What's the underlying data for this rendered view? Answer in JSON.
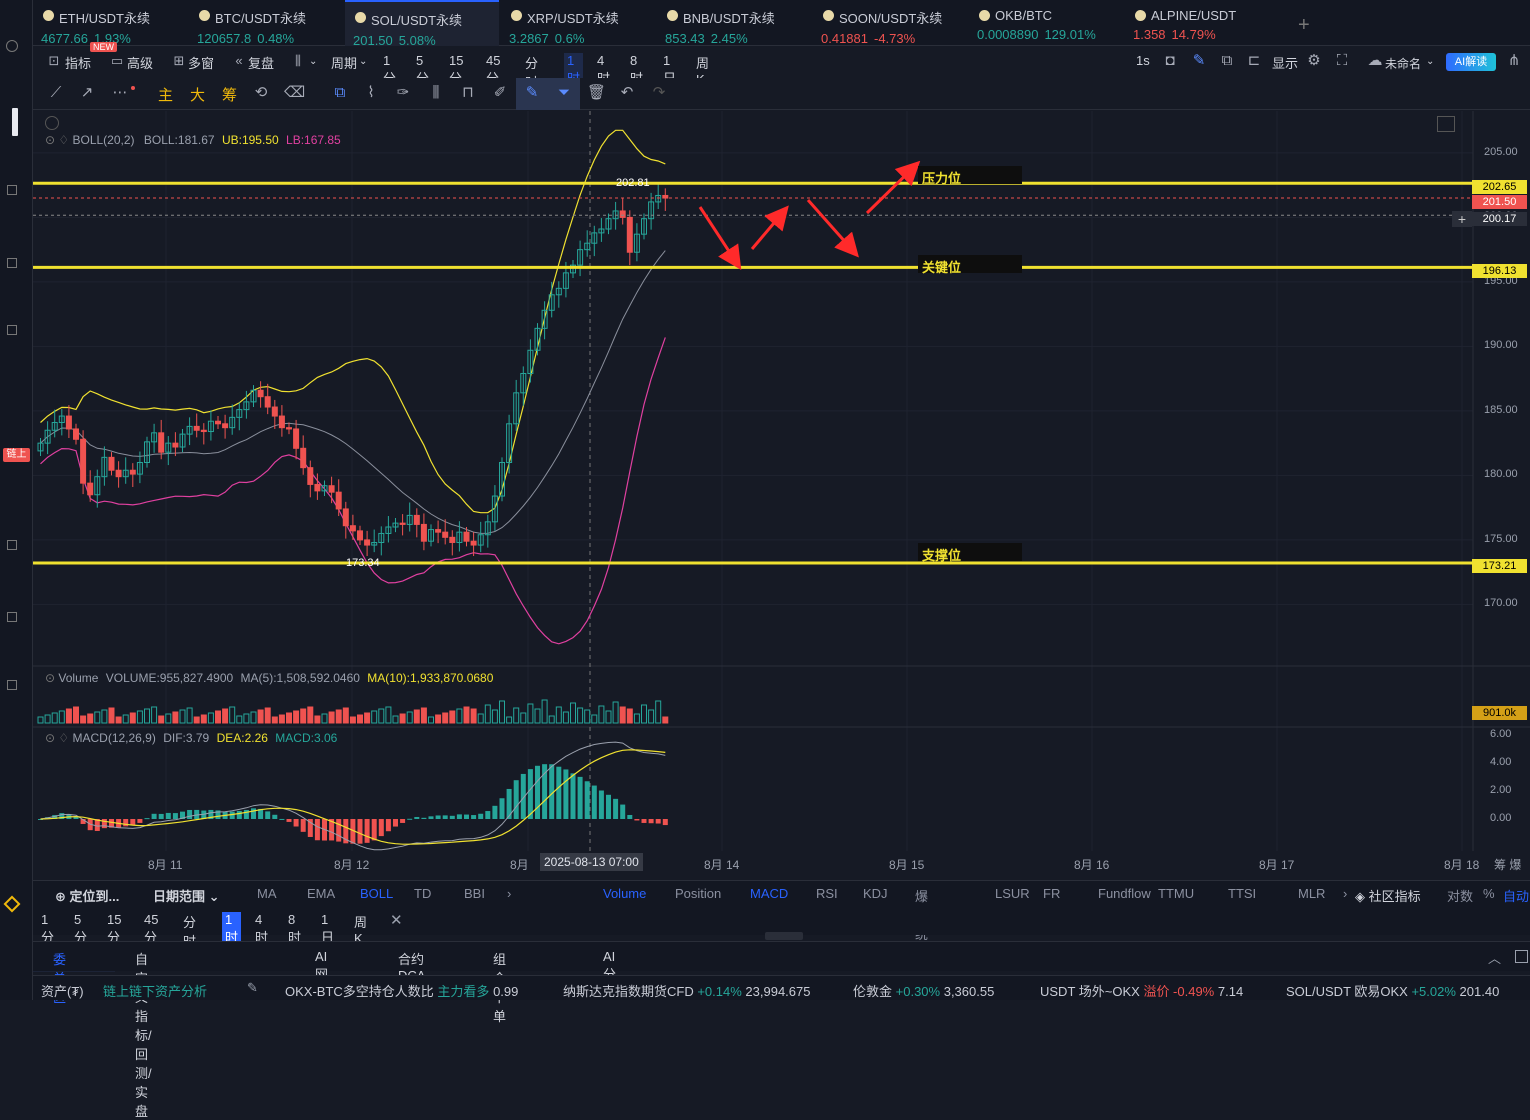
{
  "tabs": [
    {
      "name": "ETH/USDT永续",
      "price": "4677.66",
      "chg": "1.93%",
      "dir": "up"
    },
    {
      "name": "BTC/USDT永续",
      "price": "120657.8",
      "chg": "0.48%",
      "dir": "up"
    },
    {
      "name": "SOL/USDT永续",
      "price": "201.50",
      "chg": "5.08%",
      "dir": "up"
    },
    {
      "name": "XRP/USDT永续",
      "price": "3.2867",
      "chg": "0.6%",
      "dir": "up"
    },
    {
      "name": "BNB/USDT永续",
      "price": "853.43",
      "chg": "2.45%",
      "dir": "up"
    },
    {
      "name": "SOON/USDT永续",
      "price": "0.41881",
      "chg": "-4.73%",
      "dir": "dn"
    },
    {
      "name": "OKB/BTC",
      "price": "0.0008890",
      "chg": "129.01%",
      "dir": "up"
    },
    {
      "name": "ALPINE/USDT",
      "price": "1.358",
      "chg": "14.79%",
      "dir": "dn"
    }
  ],
  "toolbar": {
    "indicator": "指标",
    "new_badge": "NEW",
    "advanced": "高级",
    "multi": "多窗",
    "replay": "复盘",
    "period": "周期",
    "periods": [
      "1分",
      "5分",
      "15分",
      "45分",
      "分时",
      "1时",
      "4时",
      "8时",
      "1日",
      "周K"
    ],
    "active_period": "1时",
    "interval": "1s",
    "display": "显示",
    "unnamed": "未命名",
    "ai": "AI解读"
  },
  "drawing_tools": {
    "main": "主",
    "big": "大",
    "chip": "筹"
  },
  "legend": {
    "boll": "BOLL(20,2)",
    "boll_val": "BOLL:181.67",
    "ub": "UB:195.50",
    "lb": "LB:167.85",
    "vol": "Volume",
    "vol_val": "VOLUME:955,827.4900",
    "ma5": "MA(5):1,508,592.0460",
    "ma10": "MA(10):1,933,870.0680",
    "macd": "MACD(12,26,9)",
    "dif": "DIF:3.79",
    "dea": "DEA:2.26",
    "macd_val": "MACD:3.06"
  },
  "annotations": {
    "pressure": "压力位",
    "key": "关键位",
    "support": "支撑位",
    "high_label": "202.81",
    "low_label": "173.34"
  },
  "price_tags": {
    "resist": "202.65",
    "current": "201.50",
    "cross": "200.17",
    "key": "196.13",
    "support": "173.21",
    "vol": "901.0k"
  },
  "chart_data": {
    "type": "candlestick",
    "y_ticks": [
      "205.00",
      "200.00",
      "195.00",
      "190.00",
      "185.00",
      "180.00",
      "175.00",
      "170.00"
    ],
    "macd_ticks": [
      "6.00",
      "4.00",
      "2.00",
      "0.00"
    ],
    "x_labels": [
      "8月 11",
      "8月 12",
      "8月",
      "8月 14",
      "8月 15",
      "8月 16",
      "8月 17",
      "8月 18"
    ],
    "crosshair_date": "2025-08-13 07:00",
    "levels": {
      "resistance": 202.65,
      "key": 196.13,
      "support": 173.21
    },
    "high": 202.81,
    "low": 173.34,
    "close": [
      182.5,
      183.5,
      184.1,
      184.6,
      183.6,
      182.8,
      179.4,
      178.5,
      179.9,
      181.4,
      180.4,
      179.9,
      180.4,
      180.1,
      181.0,
      182.6,
      183.3,
      181.8,
      182.5,
      182.2,
      183.2,
      183.8,
      183.5,
      183.4,
      184.2,
      184.0,
      183.7,
      184.5,
      185.1,
      185.7,
      186.6,
      186.1,
      185.3,
      184.6,
      183.7,
      183.6,
      182.1,
      180.6,
      179.3,
      178.8,
      179.2,
      178.7,
      177.4,
      176.1,
      175.7,
      175.0,
      174.6,
      174.8,
      175.5,
      176.0,
      176.3,
      176.2,
      176.9,
      176.2,
      174.9,
      175.8,
      175.6,
      175.2,
      174.8,
      175.6,
      174.9,
      174.6,
      175.4,
      176.4,
      178.4,
      181.0,
      184.0,
      186.4,
      187.9,
      189.7,
      191.4,
      192.8,
      194.0,
      194.5,
      195.7,
      196.3,
      197.5,
      198.0,
      198.8,
      199.1,
      199.9,
      200.5,
      200.0,
      197.3,
      198.7,
      199.9,
      201.2,
      201.7,
      201.5
    ]
  },
  "bottom": {
    "locate": "定位到...",
    "range": "日期范围",
    "main_ind": [
      "MA",
      "EMA",
      "BOLL",
      "TD",
      "BBI"
    ],
    "sub_ind": [
      "Volume",
      "Position",
      "MACD",
      "RSI",
      "KDJ",
      "爆仓统计",
      "LSUR",
      "FR",
      "Fundflow",
      "TTMU",
      "TTSI",
      "MLR"
    ],
    "community": "社区指标",
    "log": "对数",
    "pct": "%",
    "auto": "自动",
    "panel_tabs": [
      "委单区",
      "自定义指标/回测/实盘",
      "AI 网格",
      "合约DCA",
      "组合下单",
      "AI分析"
    ]
  },
  "ticker": [
    {
      "label": "资产(₮)",
      "val": ""
    },
    {
      "label": "链上链下资产分析",
      "val": ""
    },
    {
      "label": "OKX-BTC多空持仓人数比",
      "val": "主力看多",
      "extra": "0.99"
    },
    {
      "label": "纳斯达克指数期货CFD",
      "val": "+0.14%",
      "extra": "23,994.675"
    },
    {
      "label": "伦敦金",
      "val": "+0.30%",
      "extra": "3,360.55"
    },
    {
      "label": "USDT 场外~OKX",
      "val": "溢价 -0.49%",
      "extra": "7.14"
    },
    {
      "label": "SOL/USDT 欧易OKX",
      "val": "+5.02%",
      "extra": "201.40"
    }
  ]
}
